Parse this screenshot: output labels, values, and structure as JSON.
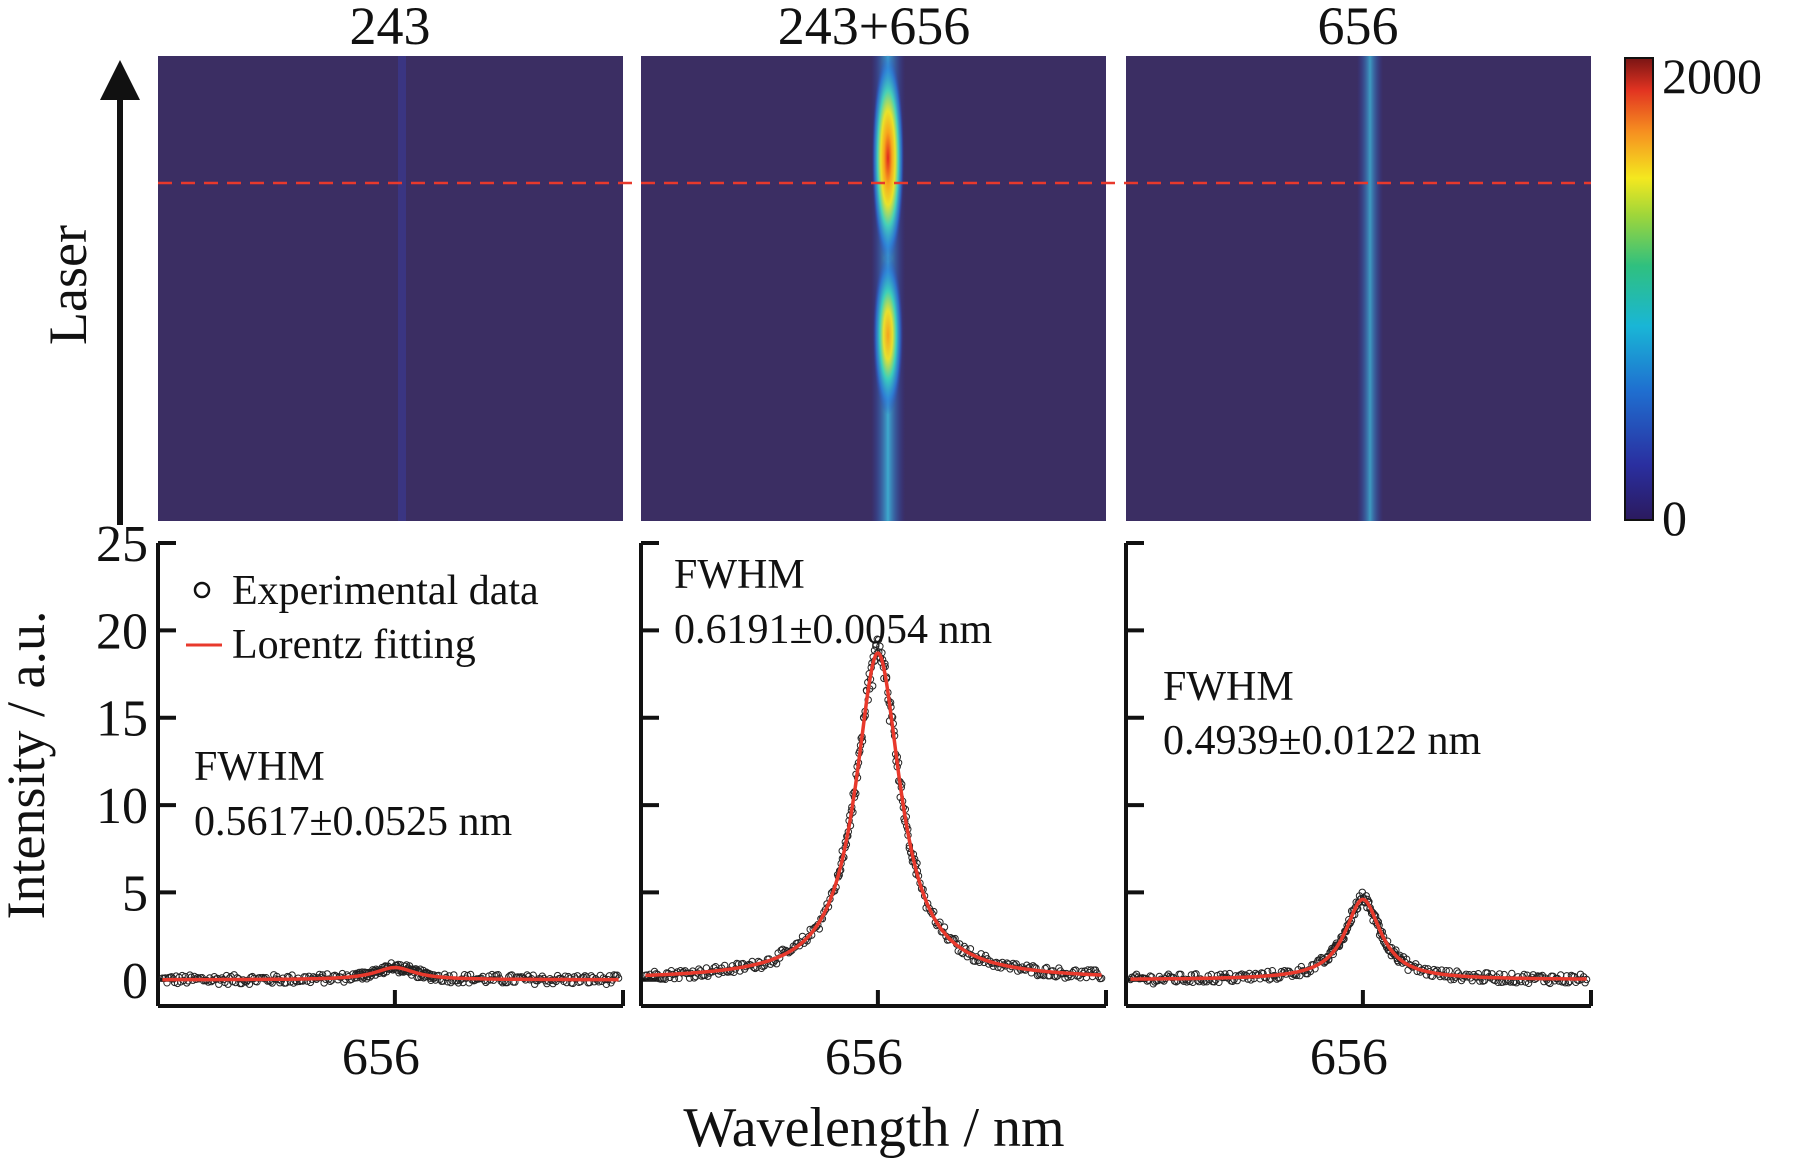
{
  "panel_titles": [
    "243",
    "243+656",
    "656"
  ],
  "laser_label": "Laser",
  "colorbar": {
    "max_label": "2000",
    "min_label": "0"
  },
  "y_axis_title": "Intensity / a.u.",
  "x_axis_title": "Wavelength / nm",
  "legend": {
    "data_label": "Experimental data",
    "fit_label": "Lorentz fitting"
  },
  "colors": {
    "image_bg": "#3b2e63",
    "fit": "#e8392c",
    "guide_line": "#e8392c",
    "axis": "#111111"
  },
  "chart_data": [
    {
      "type": "heatmap",
      "title": "243",
      "colorbar_range": [
        0,
        2000
      ],
      "peak_column_wavelength": 656,
      "streak_intensity": "very faint"
    },
    {
      "type": "heatmap",
      "title": "243+656",
      "colorbar_range": [
        0,
        2000
      ],
      "peak_column_wavelength": 656,
      "streak_intensity": "strong, two bright lobes"
    },
    {
      "type": "heatmap",
      "title": "656",
      "colorbar_range": [
        0,
        2000
      ],
      "peak_column_wavelength": 656,
      "streak_intensity": "weak continuous streak"
    },
    {
      "type": "scatter",
      "xlabel": "Wavelength / nm",
      "ylabel": "Intensity / a.u.",
      "ylim": [
        -1.5,
        25
      ],
      "yticks": [
        0,
        5,
        10,
        15,
        20,
        25
      ],
      "xtick_labels": [
        "656"
      ],
      "xlim": [
        653.3,
        658.6
      ],
      "series": [
        {
          "name": "Experimental data",
          "kind": "points",
          "baseline": 0,
          "peak_center": 656.0,
          "peak_height": 0.9
        },
        {
          "name": "Lorentz fitting",
          "kind": "line",
          "center": 656.0,
          "fwhm": 0.5617,
          "amplitude": 0.7
        }
      ],
      "annotation": {
        "label": "FWHM",
        "value": "0.5617±0.0525 nm"
      }
    },
    {
      "type": "scatter",
      "xlabel": "Wavelength / nm",
      "ylabel": "Intensity / a.u.",
      "ylim": [
        -1.5,
        25
      ],
      "xtick_labels": [
        "656"
      ],
      "xlim": [
        653.3,
        658.6
      ],
      "series": [
        {
          "name": "Experimental data",
          "kind": "points",
          "baseline": 0,
          "peak_center": 656.0,
          "peak_height": 18.5
        },
        {
          "name": "Lorentz fitting",
          "kind": "line",
          "center": 656.0,
          "fwhm": 0.6191,
          "amplitude": 18.7
        }
      ],
      "annotation": {
        "label": "FWHM",
        "value": "0.6191±0.0054 nm"
      }
    },
    {
      "type": "scatter",
      "xlabel": "Wavelength / nm",
      "ylabel": "Intensity / a.u.",
      "ylim": [
        -1.5,
        25
      ],
      "xtick_labels": [
        "656"
      ],
      "xlim": [
        653.3,
        658.6
      ],
      "series": [
        {
          "name": "Experimental data",
          "kind": "points",
          "baseline": 0,
          "peak_center": 656.0,
          "peak_height": 5.0
        },
        {
          "name": "Lorentz fitting",
          "kind": "line",
          "center": 656.0,
          "fwhm": 0.4939,
          "amplitude": 4.6
        }
      ],
      "annotation": {
        "label": "FWHM",
        "value": "0.4939±0.0122 nm"
      }
    }
  ]
}
